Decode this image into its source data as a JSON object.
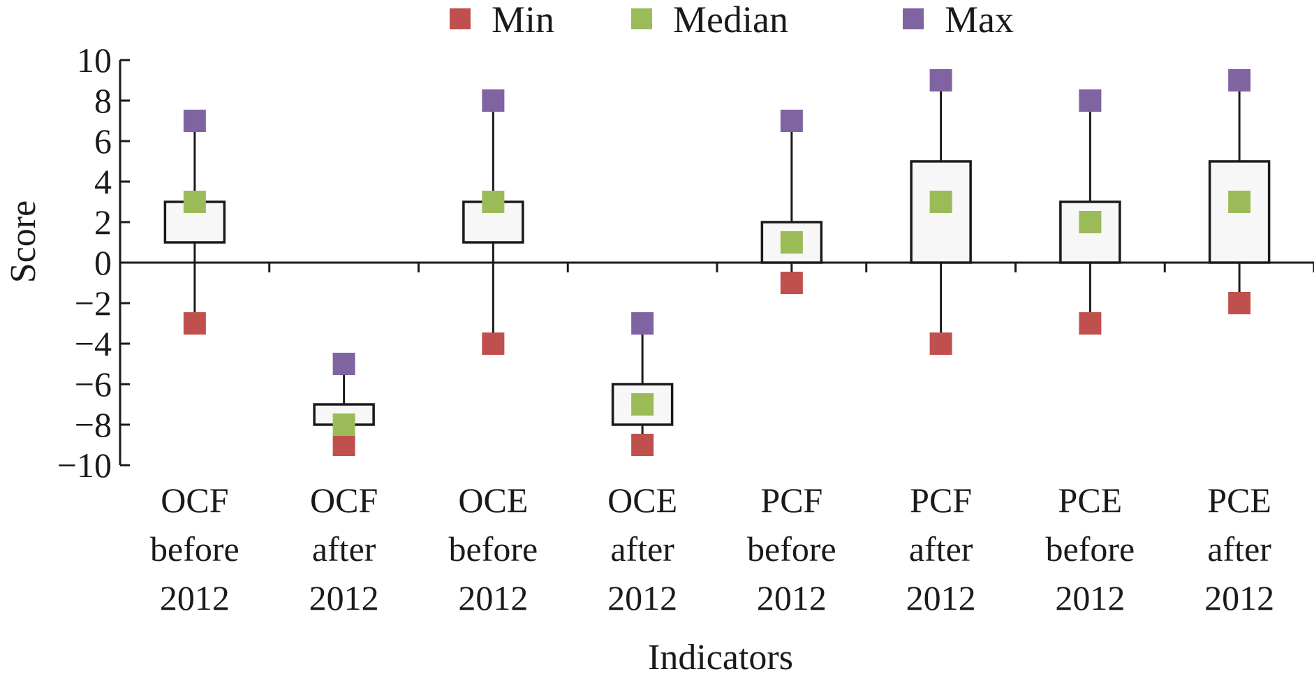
{
  "chart_data": {
    "type": "box",
    "categories": [
      [
        "OCF",
        "before",
        "2012"
      ],
      [
        "OCF",
        "after",
        "2012"
      ],
      [
        "OCE",
        "before",
        "2012"
      ],
      [
        "OCE",
        "after",
        "2012"
      ],
      [
        "PCF",
        "before",
        "2012"
      ],
      [
        "PCF",
        "after",
        "2012"
      ],
      [
        "PCE",
        "before",
        "2012"
      ],
      [
        "PCE",
        "after",
        "2012"
      ]
    ],
    "series": [
      {
        "name": "Min",
        "color": "#c0504d",
        "values": [
          -3,
          -9,
          -4,
          -9,
          -1,
          -4,
          -3,
          -2
        ]
      },
      {
        "name": "Median",
        "color": "#9bbb59",
        "values": [
          3,
          -8,
          3,
          -7,
          1,
          3,
          2,
          3
        ]
      },
      {
        "name": "Max",
        "color": "#8064a2",
        "values": [
          7,
          -5,
          8,
          -3,
          7,
          9,
          8,
          9
        ]
      }
    ],
    "boxes": [
      {
        "low": 1,
        "high": 3
      },
      {
        "low": -8,
        "high": -7
      },
      {
        "low": 1,
        "high": 3
      },
      {
        "low": -8,
        "high": -6
      },
      {
        "low": 0,
        "high": 2
      },
      {
        "low": 0,
        "high": 5
      },
      {
        "low": 0,
        "high": 3
      },
      {
        "low": 0,
        "high": 5
      }
    ],
    "xlabel": "Indicators",
    "ylabel": "Score",
    "ylim": [
      -10,
      10
    ],
    "yticks": [
      10,
      8,
      6,
      4,
      2,
      0,
      -2,
      -4,
      -6,
      -8,
      -10
    ],
    "ytick_labels": [
      "10",
      "8",
      "6",
      "4",
      "2",
      "0",
      "−2",
      "−4",
      "−6",
      "−8",
      "−10"
    ],
    "legend_position": "top",
    "box_fill": "#f7f7f7",
    "line_color": "#1a1a1a",
    "grid": false
  }
}
